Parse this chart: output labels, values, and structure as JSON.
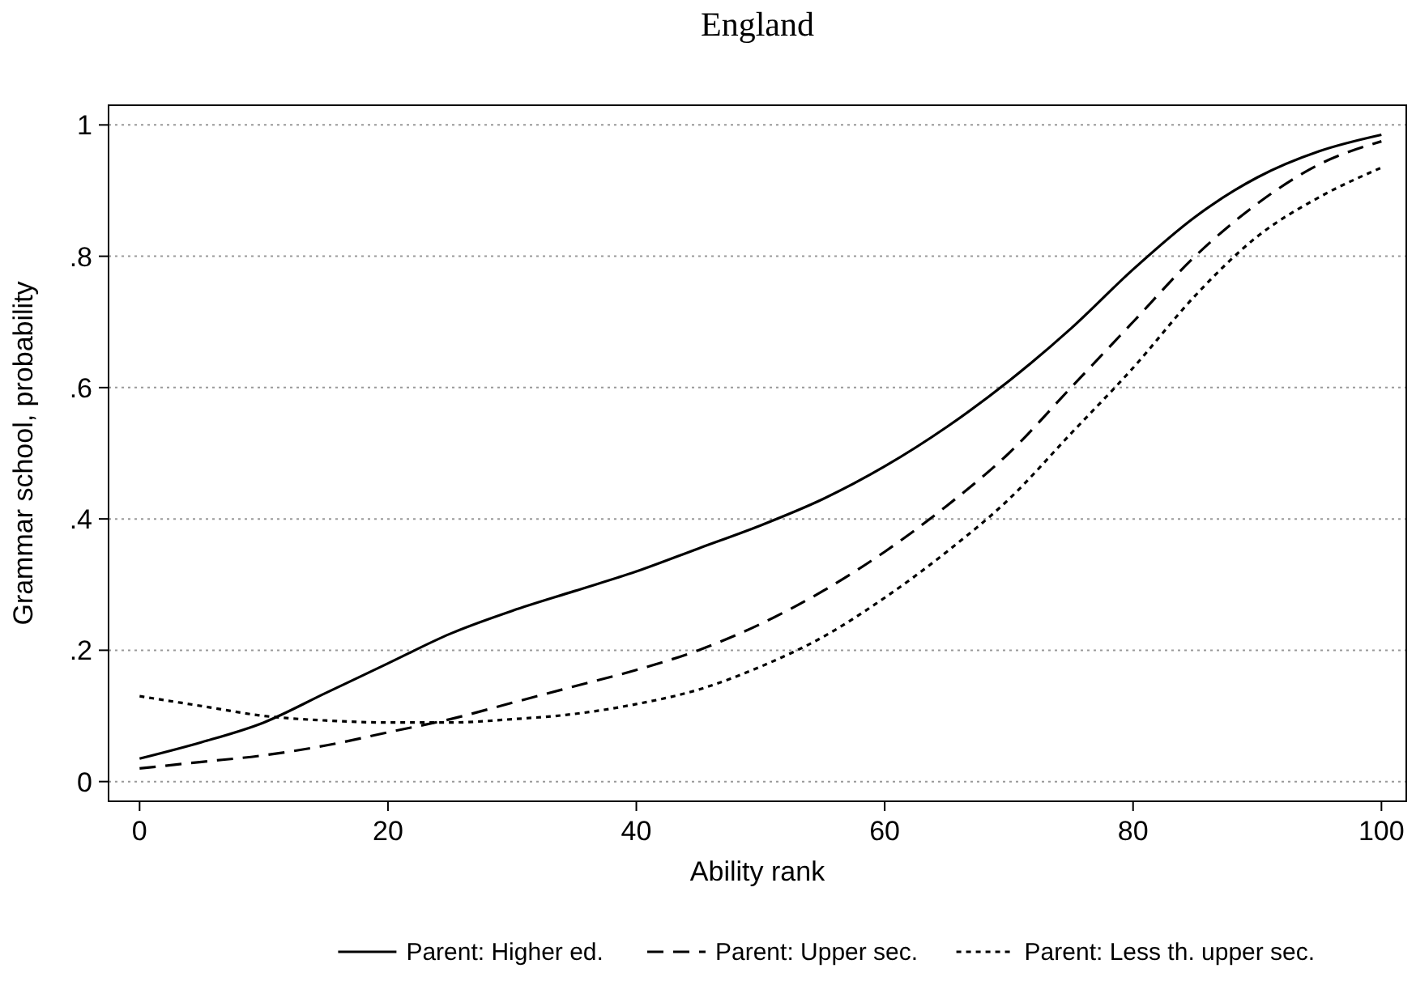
{
  "chart_data": {
    "type": "line",
    "title": "England",
    "xlabel": "Ability rank",
    "ylabel": "Grammar school, probability",
    "x": [
      0,
      5,
      10,
      15,
      20,
      25,
      30,
      35,
      40,
      45,
      50,
      55,
      60,
      65,
      70,
      75,
      80,
      85,
      90,
      95,
      100
    ],
    "series": [
      {
        "name": "Parent: Higher ed.",
        "color": "#000000",
        "line_style": "solid",
        "values": [
          0.035,
          0.06,
          0.09,
          0.135,
          0.18,
          0.225,
          0.26,
          0.29,
          0.32,
          0.355,
          0.39,
          0.43,
          0.48,
          0.54,
          0.61,
          0.69,
          0.78,
          0.86,
          0.92,
          0.96,
          0.985
        ]
      },
      {
        "name": "Parent: Upper sec.",
        "color": "#000000",
        "line_style": "dashed",
        "values": [
          0.02,
          0.03,
          0.04,
          0.055,
          0.075,
          0.095,
          0.12,
          0.145,
          0.17,
          0.2,
          0.24,
          0.29,
          0.35,
          0.42,
          0.5,
          0.6,
          0.7,
          0.8,
          0.88,
          0.94,
          0.975
        ]
      },
      {
        "name": "Parent: Less th. upper sec.",
        "color": "#000000",
        "line_style": "dotted",
        "values": [
          0.13,
          0.115,
          0.1,
          0.093,
          0.09,
          0.09,
          0.095,
          0.103,
          0.118,
          0.14,
          0.175,
          0.22,
          0.28,
          0.35,
          0.43,
          0.53,
          0.63,
          0.74,
          0.83,
          0.89,
          0.935
        ]
      }
    ],
    "xlim": [
      -2.5,
      102
    ],
    "ylim": [
      -0.03,
      1.03
    ],
    "xticks": [
      0,
      20,
      40,
      60,
      80,
      100
    ],
    "yticks": [
      0,
      {
        "value": 0.2,
        "label": ".2"
      },
      {
        "value": 0.4,
        "label": ".4"
      },
      {
        "value": 0.6,
        "label": ".6"
      },
      {
        "value": 0.8,
        "label": ".8"
      },
      1
    ],
    "grid": "y",
    "legend": "bottom"
  }
}
